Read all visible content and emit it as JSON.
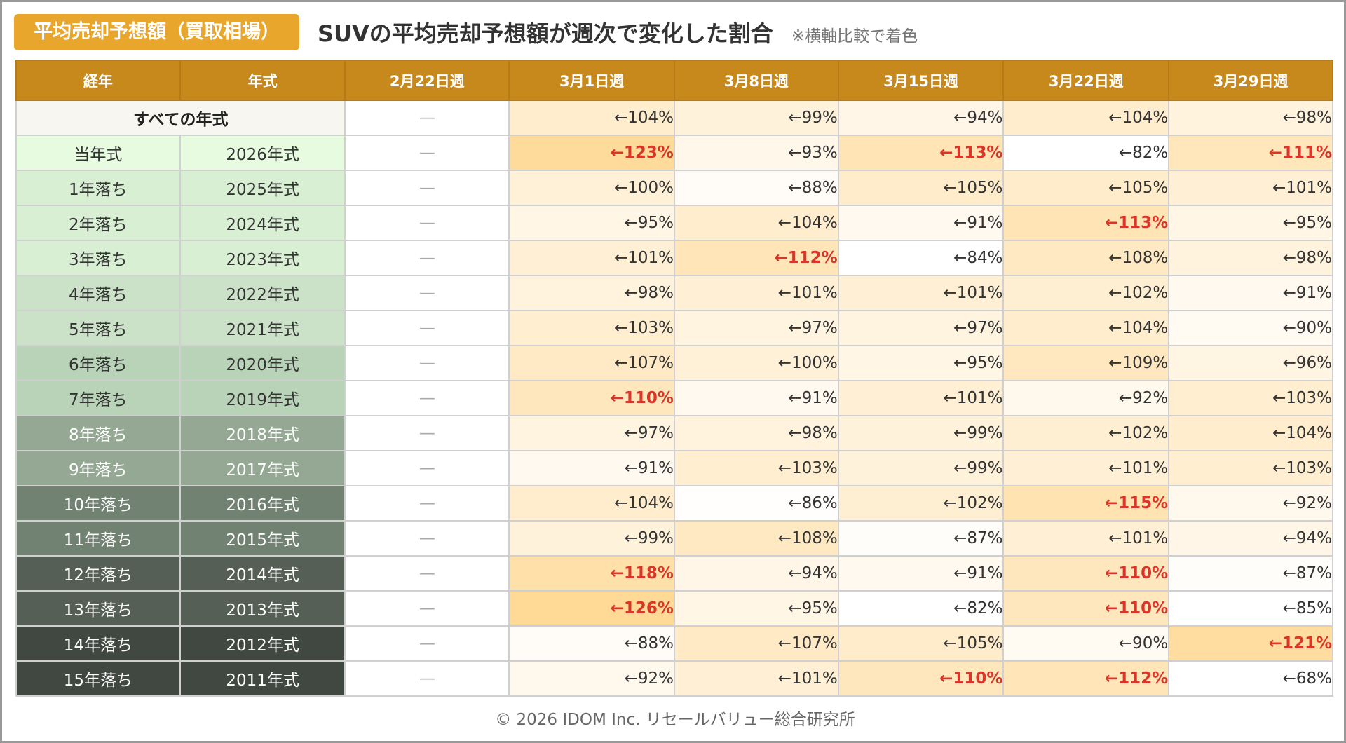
{
  "header": {
    "badge": "平均売却予想額（買取相場）",
    "title": "SUVの平均売却予想額が週次で変化した割合",
    "note": "※横軸比較で着色"
  },
  "columns": [
    "経年",
    "年式",
    "2月22日週",
    "3月1日週",
    "3月8日週",
    "3月15日週",
    "3月22日週",
    "3月29日週"
  ],
  "colors": {
    "header_bg": "#c8891c",
    "badge_bg": "#e8a62c",
    "highlight_text": "#d9362a"
  },
  "chart_data": {
    "type": "table",
    "title": "SUVの平均売却予想額が週次で変化した割合",
    "weeks": [
      "2月22日週",
      "3月1日週",
      "3月8日週",
      "3月15日週",
      "3月22日週",
      "3月29日週"
    ],
    "dash": "—",
    "all_years": {
      "label": "すべての年式",
      "values": [
        "←104%",
        "←99%",
        "←94%",
        "←104%",
        "←98%"
      ]
    },
    "rows": [
      {
        "age": "当年式",
        "year": "2026年式",
        "values": [
          "←123%",
          "←93%",
          "←113%",
          "←82%",
          "←111%"
        ]
      },
      {
        "age": "1年落ち",
        "year": "2025年式",
        "values": [
          "←100%",
          "←88%",
          "←105%",
          "←105%",
          "←101%"
        ]
      },
      {
        "age": "2年落ち",
        "year": "2024年式",
        "values": [
          "←95%",
          "←104%",
          "←91%",
          "←113%",
          "←95%"
        ]
      },
      {
        "age": "3年落ち",
        "year": "2023年式",
        "values": [
          "←101%",
          "←112%",
          "←84%",
          "←108%",
          "←98%"
        ]
      },
      {
        "age": "4年落ち",
        "year": "2022年式",
        "values": [
          "←98%",
          "←101%",
          "←101%",
          "←102%",
          "←91%"
        ]
      },
      {
        "age": "5年落ち",
        "year": "2021年式",
        "values": [
          "←103%",
          "←97%",
          "←97%",
          "←104%",
          "←90%"
        ]
      },
      {
        "age": "6年落ち",
        "year": "2020年式",
        "values": [
          "←107%",
          "←100%",
          "←95%",
          "←109%",
          "←96%"
        ]
      },
      {
        "age": "7年落ち",
        "year": "2019年式",
        "values": [
          "←110%",
          "←91%",
          "←101%",
          "←92%",
          "←103%"
        ]
      },
      {
        "age": "8年落ち",
        "year": "2018年式",
        "values": [
          "←97%",
          "←98%",
          "←99%",
          "←102%",
          "←104%"
        ]
      },
      {
        "age": "9年落ち",
        "year": "2017年式",
        "values": [
          "←91%",
          "←103%",
          "←99%",
          "←101%",
          "←103%"
        ]
      },
      {
        "age": "10年落ち",
        "year": "2016年式",
        "values": [
          "←104%",
          "←86%",
          "←102%",
          "←115%",
          "←92%"
        ]
      },
      {
        "age": "11年落ち",
        "year": "2015年式",
        "values": [
          "←99%",
          "←108%",
          "←87%",
          "←101%",
          "←94%"
        ]
      },
      {
        "age": "12年落ち",
        "year": "2014年式",
        "values": [
          "←118%",
          "←94%",
          "←91%",
          "←110%",
          "←87%"
        ]
      },
      {
        "age": "13年落ち",
        "year": "2013年式",
        "values": [
          "←126%",
          "←95%",
          "←82%",
          "←110%",
          "←85%"
        ]
      },
      {
        "age": "14年落ち",
        "year": "2012年式",
        "values": [
          "←88%",
          "←107%",
          "←105%",
          "←90%",
          "←121%"
        ]
      },
      {
        "age": "15年落ち",
        "year": "2011年式",
        "values": [
          "←92%",
          "←101%",
          "←110%",
          "←112%",
          "←68%"
        ]
      }
    ],
    "label_colors": [
      "#e6fbe0",
      "#d9efd4",
      "#d9efd4",
      "#d9efd4",
      "#cbe2c8",
      "#cbe2c8",
      "#b9d3b9",
      "#b9d3b9",
      "#94a894",
      "#94a894",
      "#728272",
      "#728272",
      "#565f56",
      "#565f56",
      "#414741",
      "#414741"
    ]
  },
  "footer": "© 2026 IDOM Inc. リセールバリュー総合研究所"
}
